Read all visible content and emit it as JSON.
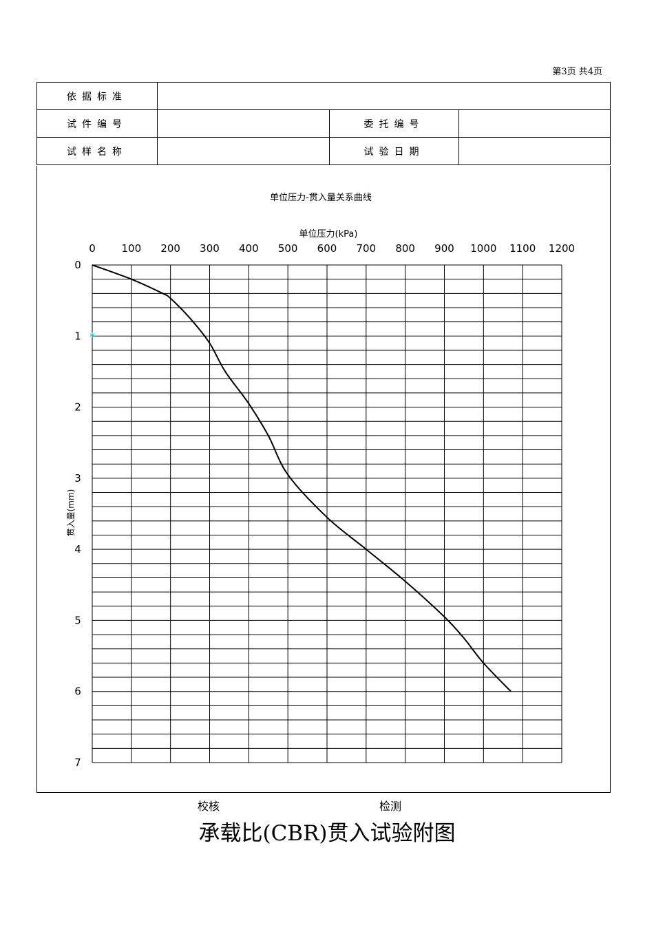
{
  "page_number": "第3页  共4页",
  "form": {
    "basis_standard_label": "依据标准",
    "specimen_no_label": "试件编号",
    "commission_no_label": "委托编号",
    "sample_name_label": "试样名称",
    "test_date_label": "试验日期"
  },
  "chart_data": {
    "type": "line",
    "title": "单位压力-贯入量关系曲线",
    "xlabel": "单位压力(kPa)",
    "ylabel": "贯入量(mm)",
    "xlim": [
      0,
      1200
    ],
    "ylim": [
      0,
      7
    ],
    "y_inverted": true,
    "x_axis_position": "top",
    "x_ticks": [
      "0",
      "100",
      "200",
      "300",
      "400",
      "500",
      "600",
      "700",
      "800",
      "900",
      "1000",
      "1100",
      "1200"
    ],
    "y_ticks": [
      "0",
      "1",
      "2",
      "3",
      "4",
      "5",
      "6",
      "7"
    ],
    "grid": true,
    "series": [
      {
        "x": [
          0,
          100,
          180,
          200,
          250,
          300,
          340,
          400,
          450,
          500,
          600,
          700,
          800,
          900,
          950,
          1000,
          1070
        ],
        "y": [
          0,
          0.2,
          0.4,
          0.47,
          0.75,
          1.1,
          1.5,
          1.95,
          2.4,
          2.95,
          3.55,
          4.0,
          4.45,
          4.95,
          5.25,
          5.6,
          6.0
        ]
      }
    ],
    "marker_point": {
      "x": 0,
      "y": 1,
      "symbol": "*",
      "color": "#00c8d8"
    },
    "line_color": "#000000"
  },
  "footer": {
    "checker_label": "校核",
    "tester_label": "检测",
    "document_title": "承载比(CBR)贯入试验附图"
  }
}
